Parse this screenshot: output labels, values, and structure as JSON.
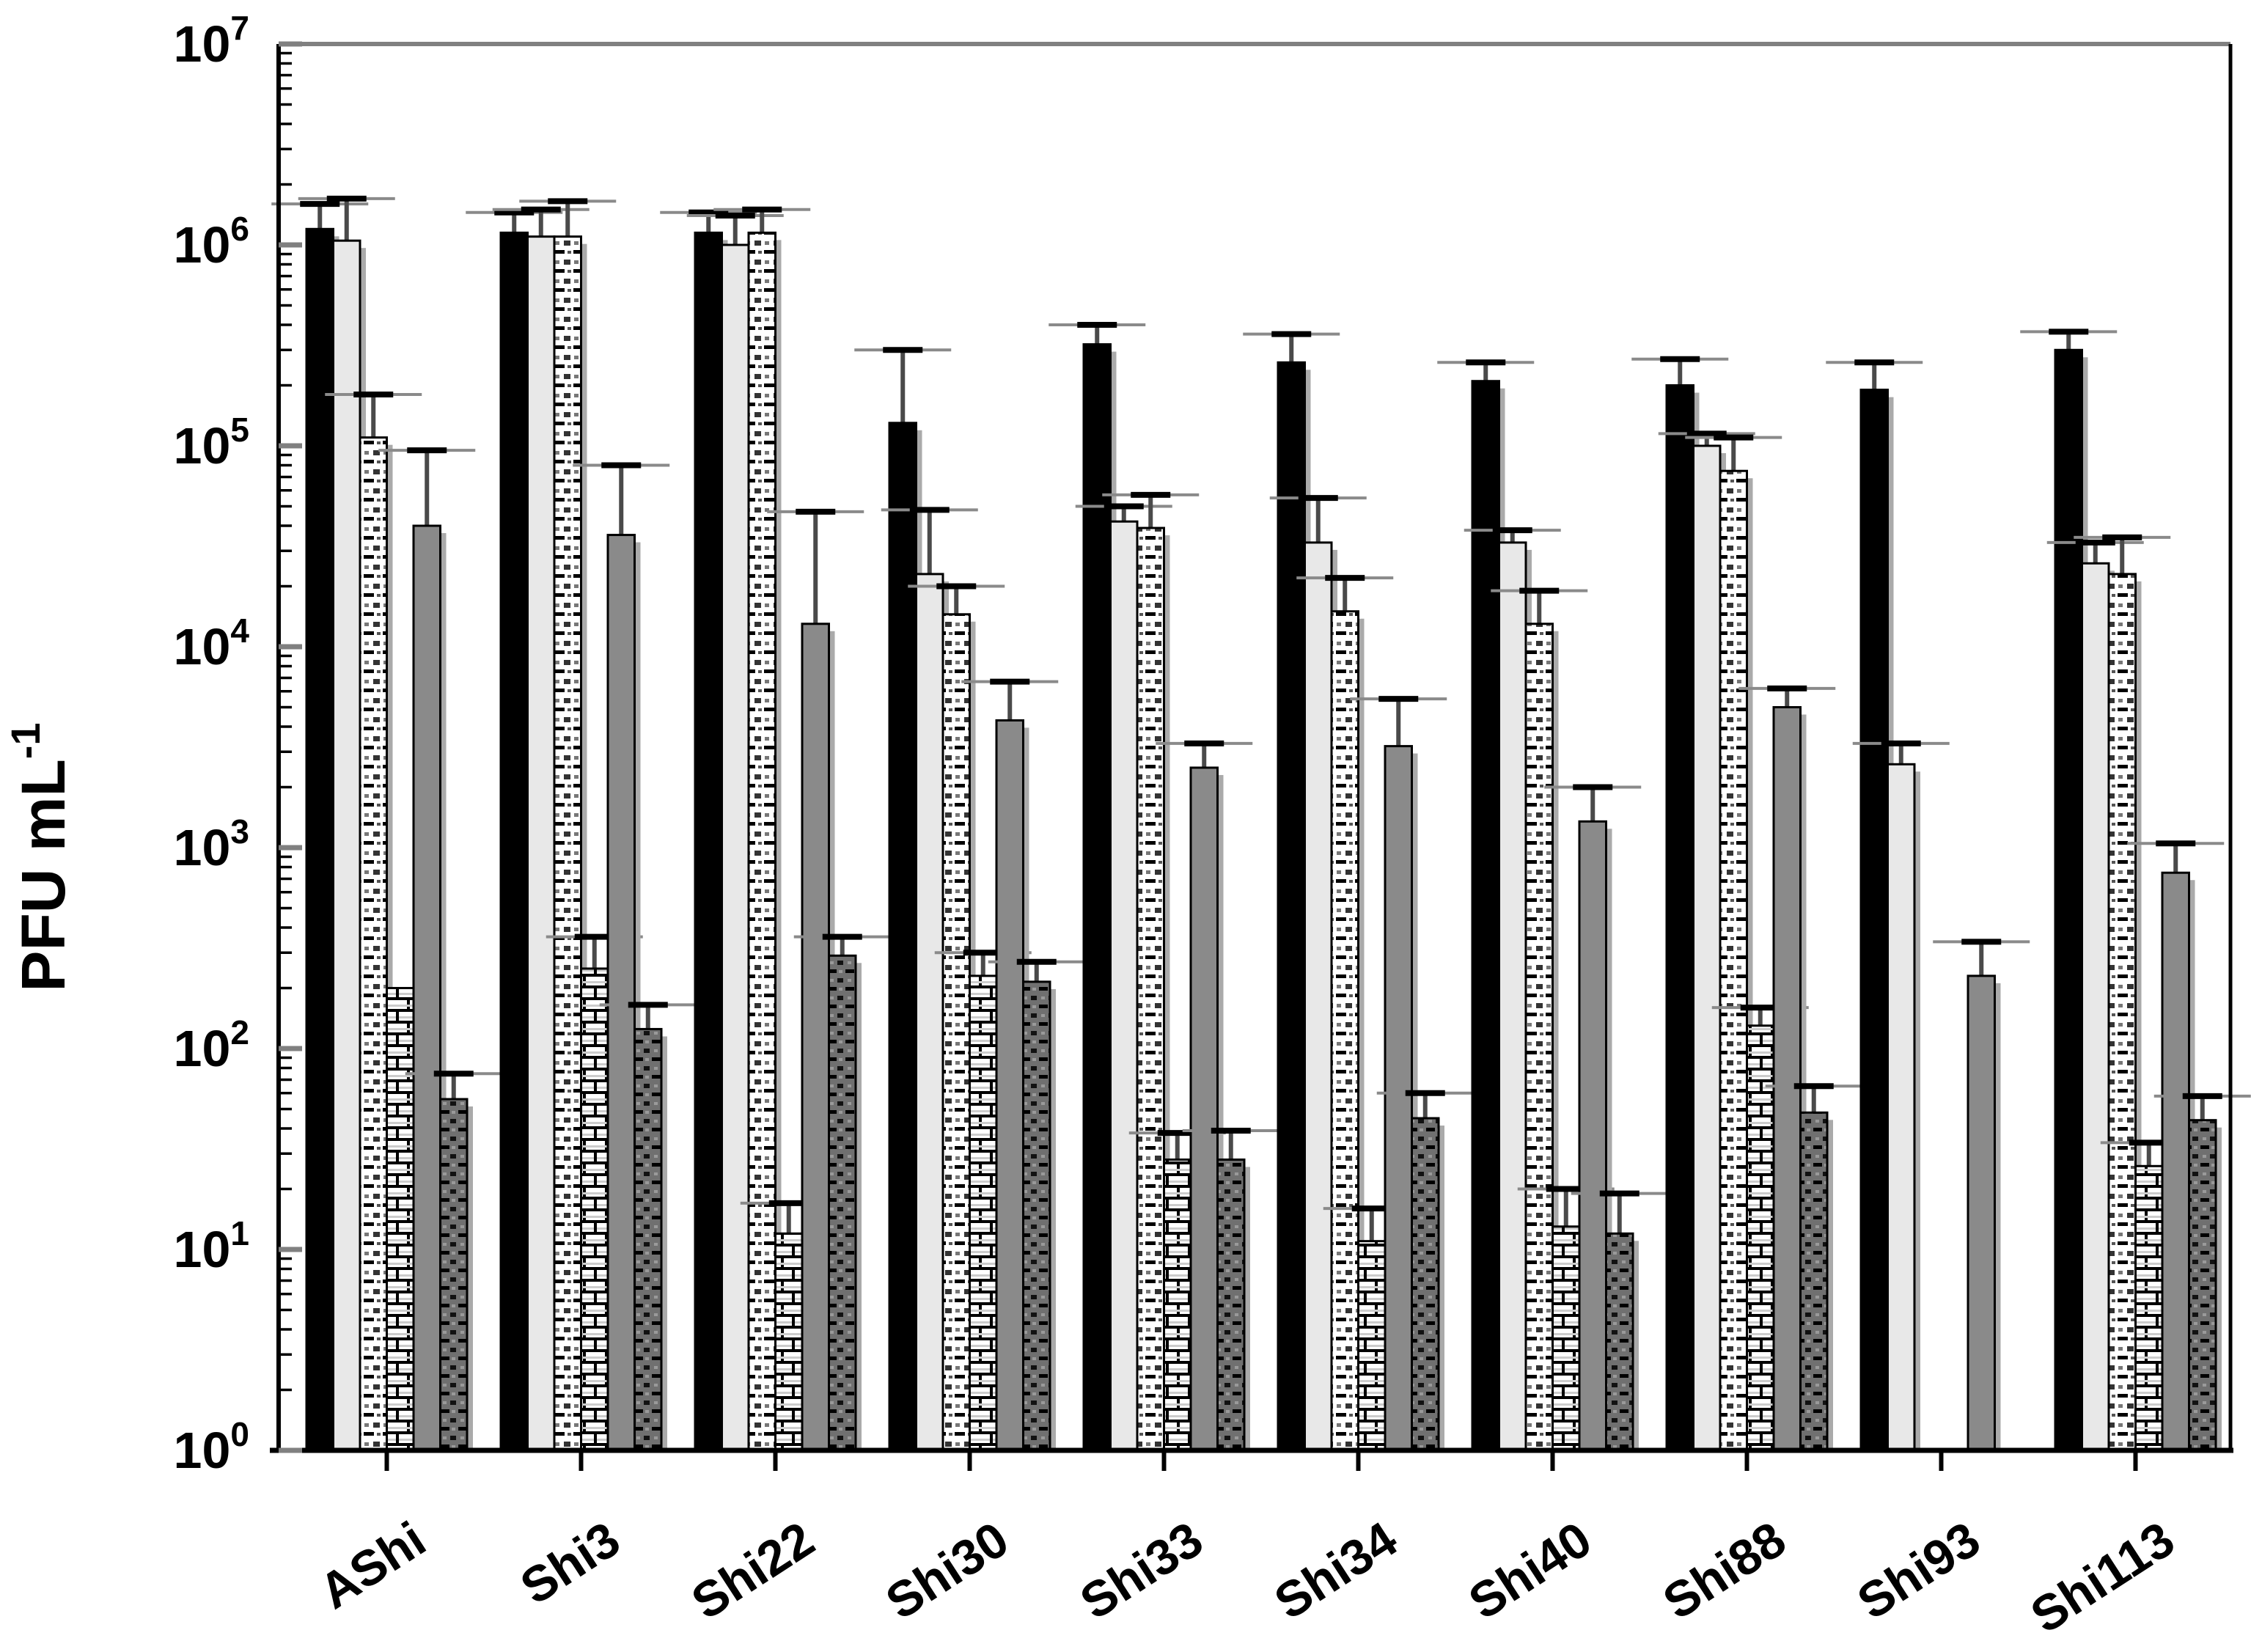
{
  "figure": {
    "ylabel_base": "PFU mL",
    "ylabel_exp": "-1",
    "background": "#ffffff",
    "axis_color": "#000000",
    "major_tick_color": "#808080",
    "top_border_color": "#808080"
  },
  "chart_data": {
    "type": "bar",
    "scale": "log",
    "title": "",
    "xlabel": "",
    "ylabel": "PFU mL⁻¹",
    "ylim": [
      1,
      10000000
    ],
    "y_decades": 7,
    "y_tick_exponents": [
      0,
      1,
      2,
      3,
      4,
      5,
      6,
      7
    ],
    "y_tick_base": "10",
    "grid": false,
    "legend": "none",
    "error_bars": "upper",
    "categories": [
      "AShi",
      "Shi3",
      "Shi22",
      "Shi30",
      "Shi33",
      "Shi34",
      "Shi40",
      "Shi88",
      "Shi93",
      "Shi113"
    ],
    "series": [
      {
        "name": "solid-black",
        "style": "solid",
        "fill": "#000000",
        "values": [
          1200000.0,
          1150000.0,
          1150000.0,
          130000.0,
          320000.0,
          260000.0,
          210000.0,
          200000.0,
          190000.0,
          300000.0
        ],
        "err_high": [
          1600000.0,
          1450000.0,
          1450000.0,
          300000.0,
          400000.0,
          360000.0,
          260000.0,
          270000.0,
          260000.0,
          370000.0
        ]
      },
      {
        "name": "solid-light-gray",
        "style": "solid",
        "fill": "#e8e8e8",
        "values": [
          1050000.0,
          1100000.0,
          1000000.0,
          23000.0,
          42000.0,
          33000.0,
          33000.0,
          100000.0,
          2600.0,
          26000.0
        ],
        "err_high": [
          1700000.0,
          1500000.0,
          1400000.0,
          48000.0,
          50000.0,
          55000.0,
          38000.0,
          115000.0,
          3300.0,
          33000.0
        ]
      },
      {
        "name": "light-stippled",
        "style": "stipple-light",
        "fill": "#ffffff",
        "values": [
          110000.0,
          1100000.0,
          1150000.0,
          14500.0,
          39000.0,
          15000.0,
          13000.0,
          75000.0,
          null,
          23000.0
        ],
        "err_high": [
          180000.0,
          1650000.0,
          1500000.0,
          20000.0,
          57000.0,
          22000.0,
          19000.0,
          110000.0,
          null,
          35000.0
        ]
      },
      {
        "name": "brick-hatched",
        "style": "brick",
        "fill": "#ffffff",
        "values": [
          200,
          250,
          12,
          230,
          28,
          11,
          13,
          130,
          null,
          26
        ],
        "err_high": [
          null,
          360,
          17,
          300,
          38,
          16,
          20,
          160,
          null,
          34
        ]
      },
      {
        "name": "solid-gray",
        "style": "solid",
        "fill": "#8a8a8a",
        "values": [
          40000.0,
          36000.0,
          13000.0,
          4300.0,
          2500.0,
          3200.0,
          1350.0,
          5000.0,
          230,
          750
        ],
        "err_high": [
          95000.0,
          80000.0,
          47000.0,
          6700.0,
          3300.0,
          5500.0,
          2000.0,
          6200.0,
          340,
          1050.0
        ]
      },
      {
        "name": "dark-stippled",
        "style": "stipple-dark",
        "fill": "#707070",
        "values": [
          56,
          125,
          290,
          215,
          28,
          45,
          12,
          48,
          null,
          44
        ],
        "err_high": [
          75,
          165,
          360,
          270,
          39,
          60,
          19,
          65,
          null,
          58
        ]
      }
    ]
  }
}
